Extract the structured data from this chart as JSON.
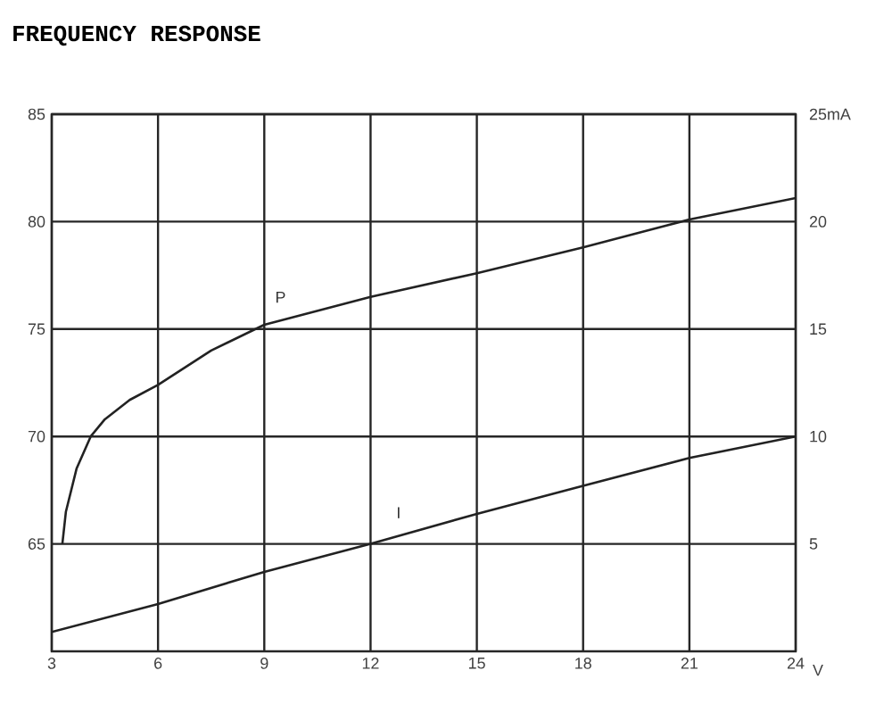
{
  "chart_data": {
    "type": "line",
    "title": "FREQUENCY RESPONSE",
    "xlabel": "V",
    "xlim": [
      3,
      24
    ],
    "xticks": [
      3,
      6,
      9,
      12,
      15,
      18,
      21,
      24
    ],
    "ylim": [
      60,
      85
    ],
    "yticks": [
      65,
      70,
      75,
      80,
      85
    ],
    "y2lim": [
      0,
      25
    ],
    "y2ticks": [
      5,
      10,
      15,
      20,
      {
        "value": 25,
        "label": "25mA"
      }
    ],
    "grid": true,
    "marker": "none",
    "line_style": "solid",
    "series": [
      {
        "name": "P",
        "color": "#222222",
        "x": [
          3.3,
          3.4,
          3.7,
          4.1,
          4.5,
          5.2,
          6,
          7.5,
          9,
          12,
          15,
          18,
          21,
          24
        ],
        "values": [
          65,
          66.5,
          68.5,
          70,
          70.8,
          71.7,
          72.4,
          74,
          75.2,
          76.5,
          77.6,
          78.8,
          80.1,
          81.1
        ]
      },
      {
        "name": "I",
        "color": "#222222",
        "axis": "y2",
        "x": [
          3,
          6,
          9,
          12,
          15,
          18,
          21,
          24
        ],
        "values": [
          0.9,
          2.2,
          3.7,
          5,
          6.4,
          7.7,
          9,
          10
        ]
      }
    ]
  }
}
